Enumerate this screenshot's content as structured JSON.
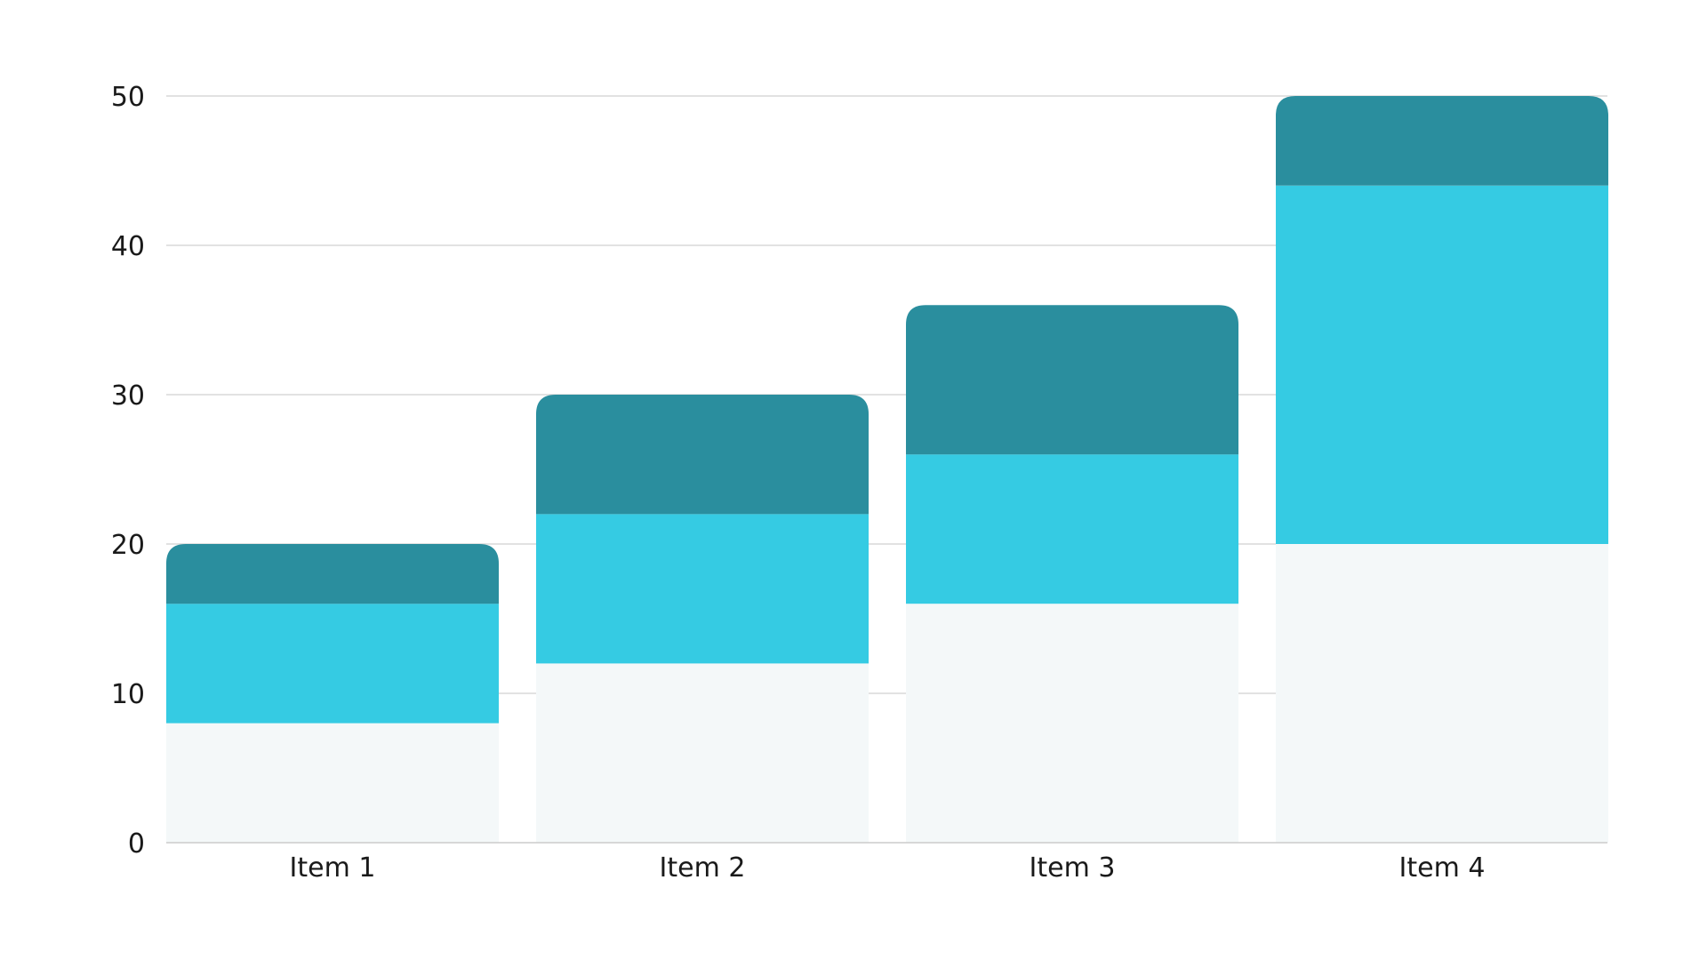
{
  "chart_data": {
    "type": "bar",
    "stacked": true,
    "categories": [
      "Item 1",
      "Item 2",
      "Item 3",
      "Item 4"
    ],
    "series": [
      {
        "values": [
          8,
          12,
          16,
          20
        ],
        "color": "#f4f8f9"
      },
      {
        "values": [
          8,
          10,
          10,
          24
        ],
        "color": "#35cbe3"
      },
      {
        "values": [
          4,
          8,
          10,
          6
        ],
        "color": "#2a8e9e"
      }
    ],
    "title": "",
    "xlabel": "",
    "ylabel": "",
    "ylim": [
      0,
      50
    ],
    "yticks": [
      0,
      10,
      20,
      30,
      40,
      50
    ],
    "grid": true,
    "gridline_color": "#d9d9d9",
    "axis_line_color": "#cccccc",
    "legend": "none"
  }
}
